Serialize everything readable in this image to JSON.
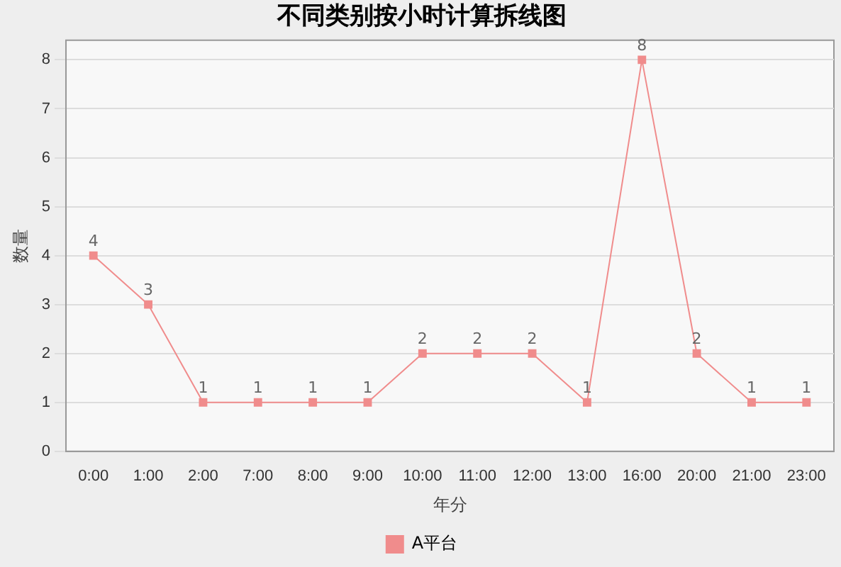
{
  "chart_data": {
    "type": "line",
    "title": "不同类别按小时计算拆线图",
    "xlabel": "年分",
    "ylabel": "数量",
    "categories": [
      "0:00",
      "1:00",
      "2:00",
      "7:00",
      "8:00",
      "9:00",
      "10:00",
      "11:00",
      "12:00",
      "13:00",
      "16:00",
      "20:00",
      "21:00",
      "23:00"
    ],
    "series": [
      {
        "name": "A平台",
        "color": "#f08c8c",
        "values": [
          4,
          3,
          1,
          1,
          1,
          1,
          2,
          2,
          2,
          1,
          8,
          2,
          1,
          1
        ]
      }
    ],
    "ylim": [
      0,
      8.4
    ],
    "yticks": [
      0,
      1,
      2,
      3,
      4,
      5,
      6,
      7,
      8
    ],
    "grid": "y",
    "legend": "bottom",
    "marker": "square",
    "line_style": "solid",
    "data_labels": true
  }
}
